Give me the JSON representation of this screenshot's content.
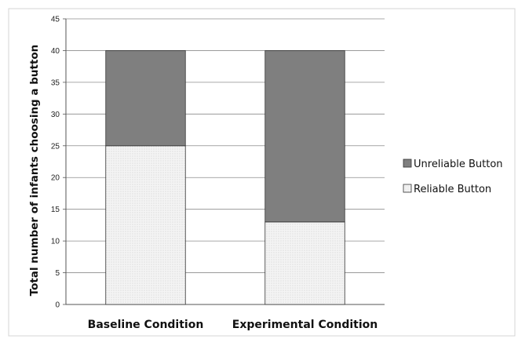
{
  "chart_data": {
    "type": "bar",
    "stacked": true,
    "categories": [
      "Baseline Condition",
      "Experimental Condition"
    ],
    "series": [
      {
        "name": "Reliable Button",
        "values": [
          25,
          13
        ],
        "color": "#f0f0f0",
        "pattern": "dotted"
      },
      {
        "name": "Unreliable Button",
        "values": [
          15,
          27
        ],
        "color": "#7f7f7f"
      }
    ],
    "title": "",
    "xlabel": "",
    "ylabel": "Total number of infants choosing a button",
    "ylim": [
      0,
      45
    ],
    "yticks": [
      0,
      5,
      10,
      15,
      20,
      25,
      30,
      35,
      40,
      45
    ],
    "grid": true,
    "legend": {
      "position": "right",
      "entries": [
        "Unreliable Button",
        "Reliable Button"
      ]
    }
  }
}
